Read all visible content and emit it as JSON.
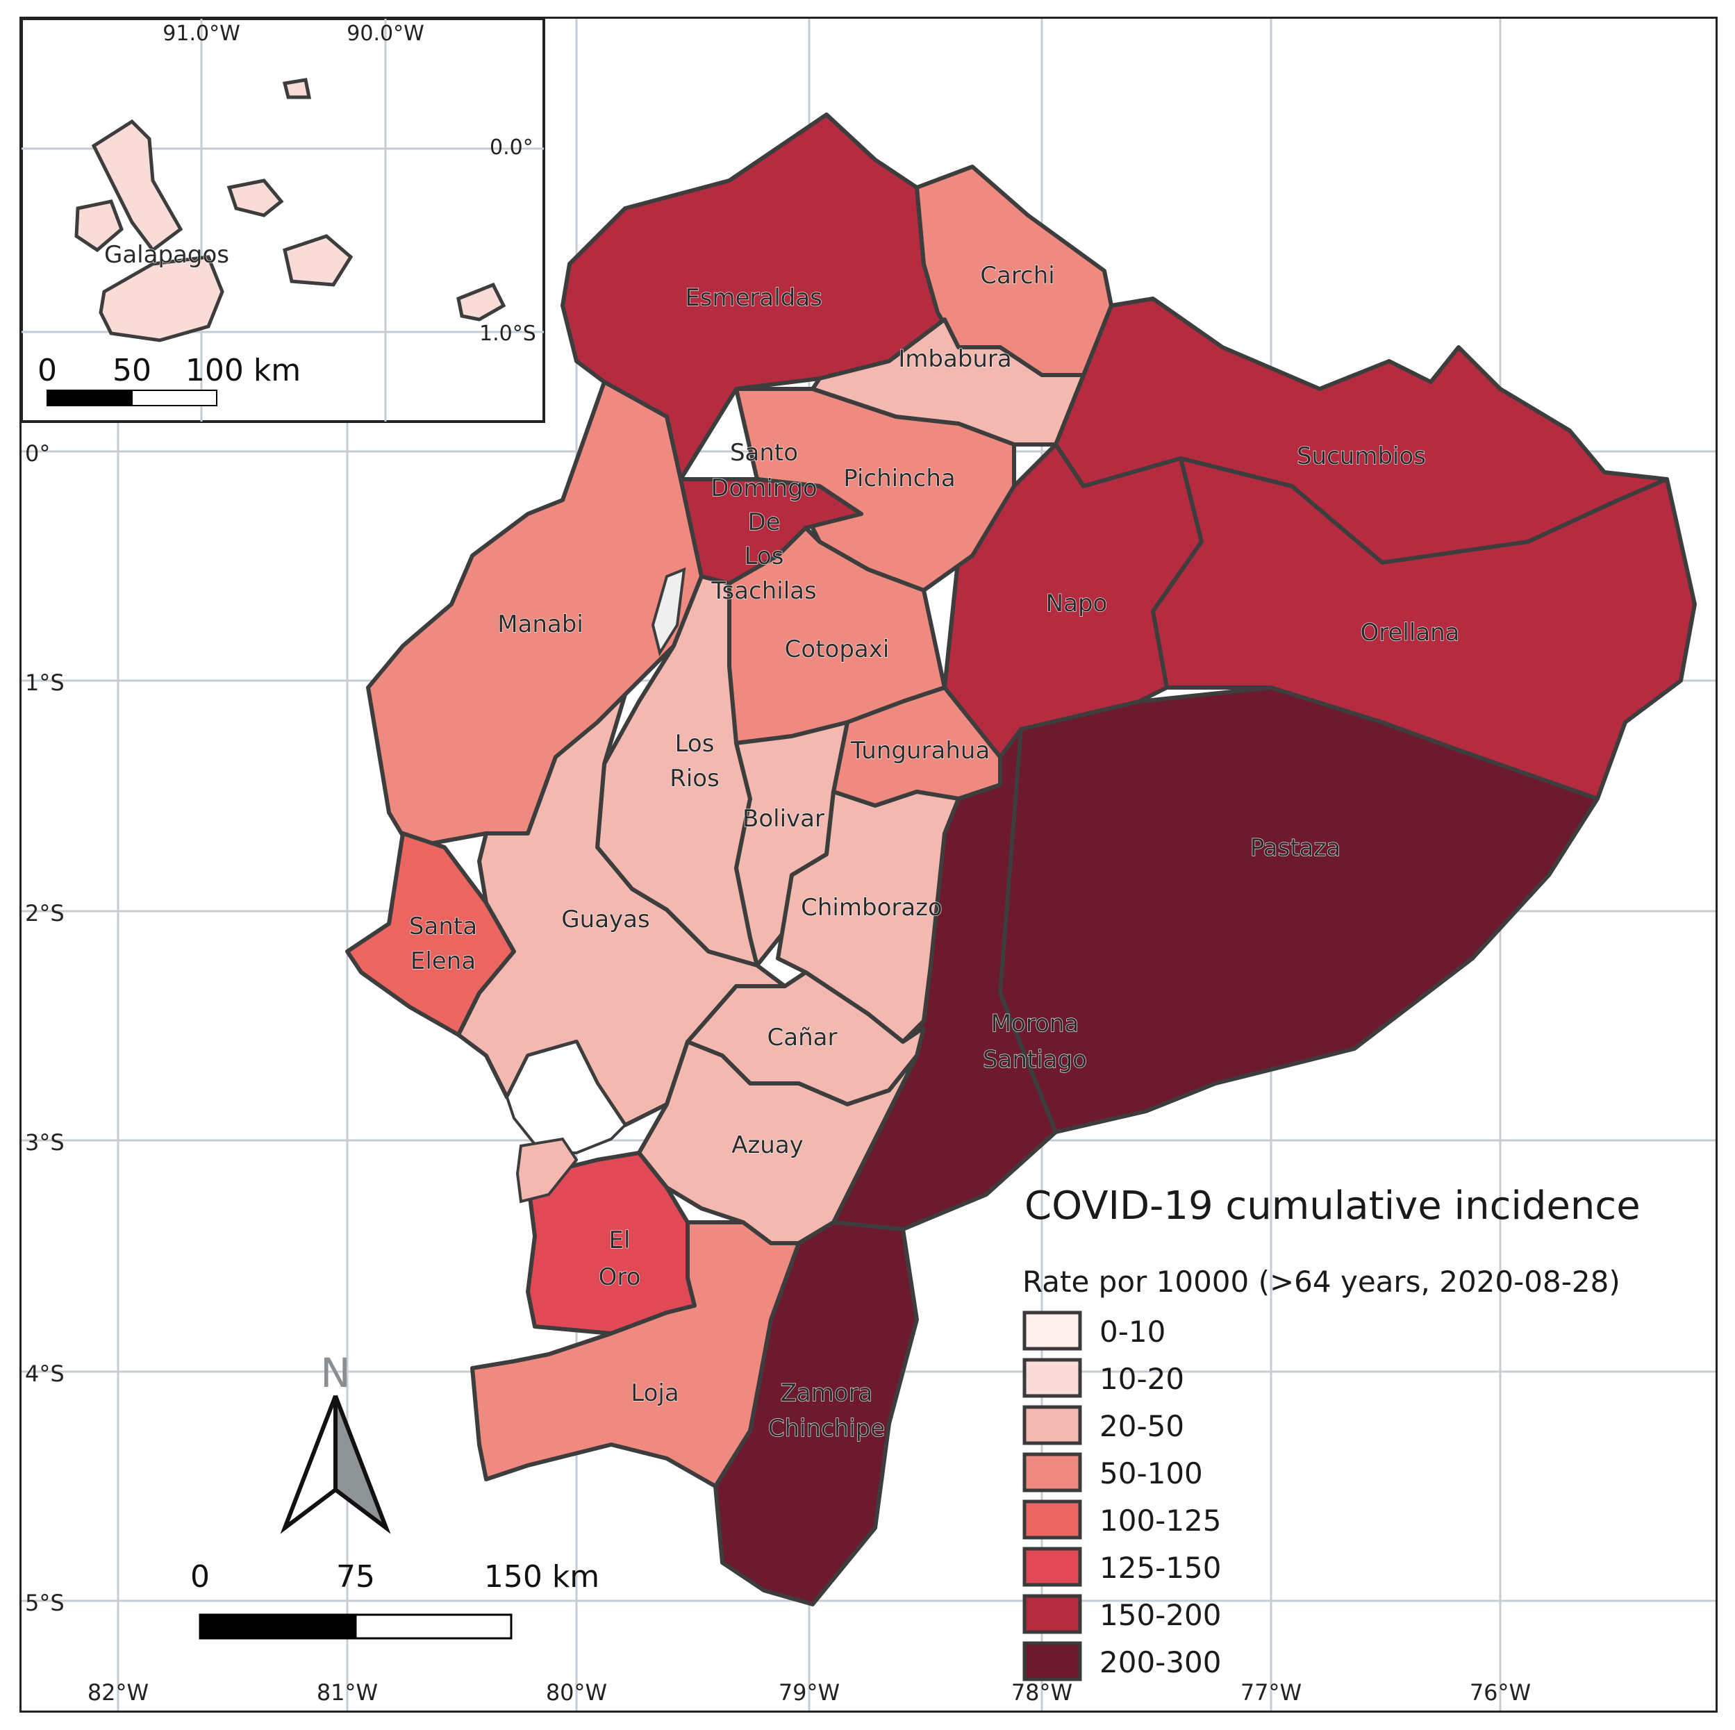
{
  "legend": {
    "title": "COVID-19 cumulative incidence",
    "subtitle": "Rate por 10000 (>64 years, 2020-08-28)",
    "classes": [
      {
        "label": "0-10",
        "color": "#fdf0ef"
      },
      {
        "label": "10-20",
        "color": "#f9dcd8"
      },
      {
        "label": "20-50",
        "color": "#f3b9b1"
      },
      {
        "label": "50-100",
        "color": "#ef8a80"
      },
      {
        "label": "100-125",
        "color": "#ec6661"
      },
      {
        "label": "125-150",
        "color": "#e24956"
      },
      {
        "label": "150-200",
        "color": "#b52b3f"
      },
      {
        "label": "200-300",
        "color": "#6e1a2e"
      }
    ]
  },
  "provinces": [
    {
      "name": "Esmeraldas",
      "class": "150-200"
    },
    {
      "name": "Carchi",
      "class": "50-100"
    },
    {
      "name": "Imbabura",
      "class": "20-50"
    },
    {
      "name": "Sucumbios",
      "class": "150-200"
    },
    {
      "name": "Pichincha",
      "class": "50-100"
    },
    {
      "name": "Santo Domingo De Los Tsachilas",
      "class": "150-200"
    },
    {
      "name": "Manabi",
      "class": "50-100"
    },
    {
      "name": "Napo",
      "class": "150-200"
    },
    {
      "name": "Orellana",
      "class": "150-200"
    },
    {
      "name": "Cotopaxi",
      "class": "50-100"
    },
    {
      "name": "Los Rios",
      "class": "20-50"
    },
    {
      "name": "Tungurahua",
      "class": "50-100"
    },
    {
      "name": "Bolivar",
      "class": "20-50"
    },
    {
      "name": "Pastaza",
      "class": "200-300"
    },
    {
      "name": "Santa Elena",
      "class": "100-125"
    },
    {
      "name": "Guayas",
      "class": "20-50"
    },
    {
      "name": "Chimborazo",
      "class": "20-50"
    },
    {
      "name": "Morona Santiago",
      "class": "200-300"
    },
    {
      "name": "Cañar",
      "class": "20-50"
    },
    {
      "name": "Azuay",
      "class": "20-50"
    },
    {
      "name": "El Oro",
      "class": "125-150"
    },
    {
      "name": "Loja",
      "class": "50-100"
    },
    {
      "name": "Zamora Chinchipe",
      "class": "200-300"
    },
    {
      "name": "Galapagos",
      "class": "10-20"
    }
  ],
  "labels": {
    "esmeraldas": "Esmeraldas",
    "carchi": "Carchi",
    "imbabura": "Imbabura",
    "sucumbios": "Sucumbios",
    "pichincha": "Pichincha",
    "sd1": "Santo",
    "sd2": "Domingo",
    "sd3": "De",
    "sd4": "Los",
    "sd5": "Tsachilas",
    "manabi": "Manabi",
    "napo": "Napo",
    "orellana": "Orellana",
    "cotopaxi": "Cotopaxi",
    "losrios1": "Los",
    "losrios2": "Rios",
    "tungurahua": "Tungurahua",
    "bolivar": "Bolivar",
    "pastaza": "Pastaza",
    "santaelena1": "Santa",
    "santaelena2": "Elena",
    "guayas": "Guayas",
    "chimborazo": "Chimborazo",
    "morona1": "Morona",
    "morona2": "Santiago",
    "canar": "Cañar",
    "azuay": "Azuay",
    "eloro1": "El",
    "eloro2": "Oro",
    "loja": "Loja",
    "zamora1": "Zamora",
    "zamora2": "Chinchipe",
    "galapagos": "Galapagos"
  },
  "axes": {
    "lon_ticks": [
      "82°W",
      "81°W",
      "80°W",
      "79°W",
      "78°W",
      "77°W",
      "76°W"
    ],
    "lat_ticks": [
      "0°",
      "1°S",
      "2°S",
      "3°S",
      "4°S",
      "5°S"
    ]
  },
  "inset": {
    "lon_ticks": [
      "91.0°W",
      "90.0°W"
    ],
    "lat_ticks": [
      "0.0°",
      "1.0°S"
    ],
    "scale": {
      "zero": "0",
      "mid": "50",
      "end": "100 km"
    }
  },
  "scale_bar": {
    "zero": "0",
    "mid": "75",
    "end": "150 km"
  },
  "north_arrow": {
    "letter": "N"
  }
}
